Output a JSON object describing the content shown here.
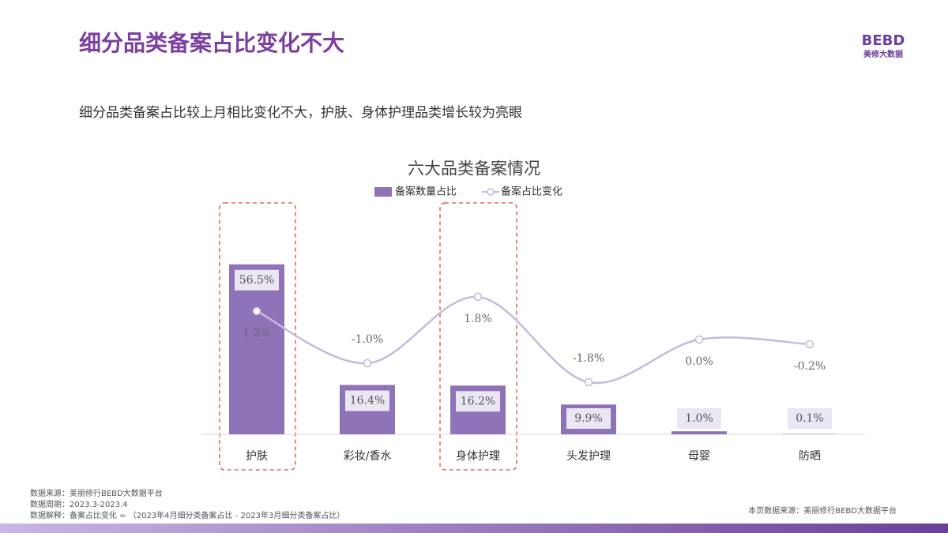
{
  "header": {
    "title": "细分品类备案占比变化不大",
    "subtitle": "细分品类备案占比较上月相比变化不大，护肤、身体护理品类增长较为亮眼",
    "logo": "BEBD",
    "logo_sub": "美修大数据"
  },
  "chart_data": {
    "type": "bar",
    "title": "六大品类备案情况",
    "categories": [
      "护肤",
      "彩妆/香水",
      "身体护理",
      "头发护理",
      "母婴",
      "防晒"
    ],
    "series": [
      {
        "name": "备案数量占比",
        "type": "bar",
        "color": "#8e73b8",
        "values": [
          56.5,
          16.4,
          16.2,
          9.9,
          1.0,
          0.1
        ],
        "value_labels": [
          "56.5%",
          "16.4%",
          "16.2%",
          "9.9%",
          "1.0%",
          "0.1%"
        ]
      },
      {
        "name": "备案占比变化",
        "type": "line",
        "axis": "y2",
        "color": "#c5bade",
        "values": [
          1.2,
          -1.0,
          1.8,
          -1.8,
          0.0,
          -0.2
        ],
        "value_labels": [
          "1.2%",
          "-1.0%",
          "1.8%",
          "-1.8%",
          "0.0%",
          "-0.2%"
        ]
      }
    ],
    "ylim": [
      0,
      63
    ],
    "y2lim": [
      -4,
      4
    ]
  },
  "footer": {
    "source": "数据来源：美丽修行BEBD大数据平台",
    "period": "数据周期：2023.3-2023.4",
    "note": "数据解释：备案占比变化 = （2023年4月细分类备案占比 - 2023年3月细分类备案占比）",
    "right": "本页数据来源：美丽修行BEBD大数据平台"
  }
}
